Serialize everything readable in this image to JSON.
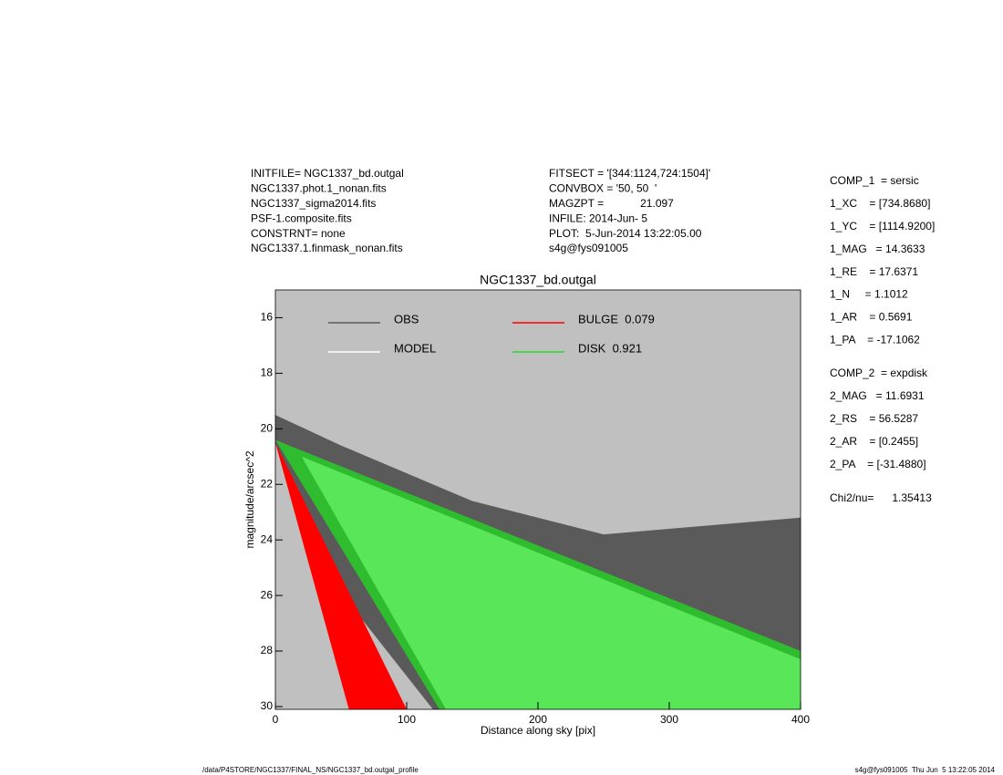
{
  "header": {
    "left": [
      "INITFILE= NGC1337_bd.outgal",
      "NGC1337.phot.1_nonan.fits",
      "NGC1337_sigma2014.fits",
      "PSF-1.composite.fits",
      "CONSTRNT= none",
      "NGC1337.1.finmask_nonan.fits"
    ],
    "middle": [
      "FITSECT = '[344:1124,724:1504]'",
      "CONVBOX = '50, 50  '",
      "MAGZPT =            21.097",
      "INFILE: 2014-Jun- 5",
      "PLOT:  5-Jun-2014 13:22:05.00",
      "s4g@fys091005"
    ]
  },
  "params": {
    "comp1": [
      "COMP_1  = sersic",
      "1_XC    = [734.8680]",
      "1_YC    = [1114.9200]",
      "1_MAG   = 14.3633",
      "1_RE    = 17.6371",
      "1_N     = 1.1012",
      "1_AR    = 0.5691",
      "1_PA    = -17.1062"
    ],
    "comp2": [
      "COMP_2  = expdisk",
      "2_MAG   = 11.6931",
      "2_RS    = 56.5287",
      "2_AR    = [0.2455]",
      "2_PA    = [-31.4880]"
    ],
    "chi": "Chi2/nu=      1.35413"
  },
  "footer": {
    "left": "/data/P4STORE/NGC1337/FINAL_NS/NGC1337_bd.outgal_profile",
    "right": "s4g@fys091005  Thu Jun  5 13:22:05 2014"
  },
  "chart_data": {
    "type": "area",
    "title": "NGC1337_bd.outgal",
    "x_label": "Distance along sky [pix]",
    "y_label": "magnitude/arcsec^2",
    "xlim": [
      0,
      400
    ],
    "ylim": [
      30.1,
      15
    ],
    "xticks": [
      0,
      100,
      200,
      300,
      400
    ],
    "yticks": [
      16,
      18,
      20,
      22,
      24,
      26,
      28,
      30
    ],
    "background": "#c0c0c0",
    "series": [
      {
        "name": "OBS",
        "color": "#5a5a5a",
        "x": [
          0,
          50,
          150,
          250,
          400,
          400,
          120,
          60,
          0
        ],
        "y": [
          19.5,
          20.6,
          22.6,
          23.8,
          23.2,
          30.1,
          30.1,
          26.5,
          20.5
        ]
      },
      {
        "name": "MODEL",
        "color": "#ffffff",
        "x": [
          20,
          400,
          400,
          130
        ],
        "y": [
          21,
          28.3,
          30.1,
          30.1
        ]
      },
      {
        "name": "BULGE  0.079",
        "color": "#ff0000",
        "x": [
          0,
          56,
          100
        ],
        "y": [
          20.5,
          30.1,
          30.1
        ]
      },
      {
        "name": "DISK  0.921",
        "color": "#22dd22",
        "opacity": 0.75,
        "x": [
          0,
          400,
          400,
          125
        ],
        "y": [
          20.4,
          28,
          30.1,
          30.1
        ]
      }
    ]
  }
}
